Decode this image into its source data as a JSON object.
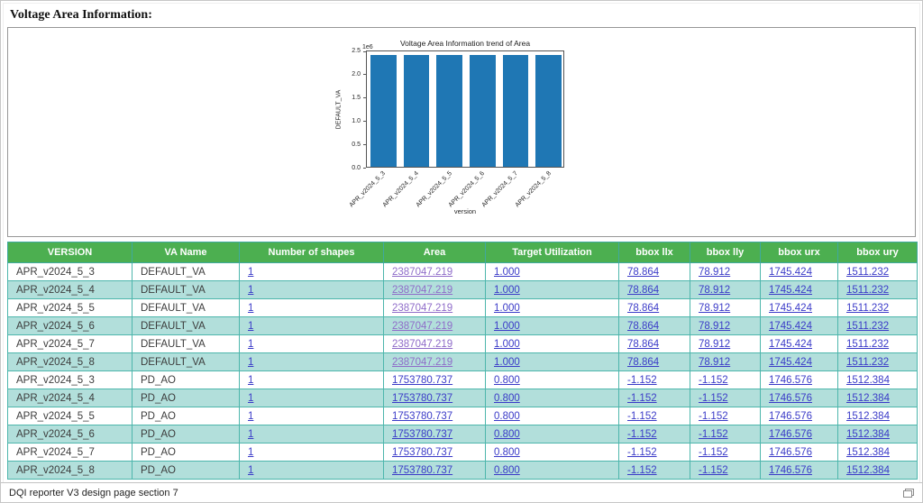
{
  "page": {
    "title": "Voltage Area Information:",
    "footer": "DQI reporter V3 design page section 7",
    "footer_icon": "overlapping-windows-icon"
  },
  "chart_data": {
    "type": "bar",
    "title": "Voltage Area Information trend of Area",
    "categories": [
      "APR_v2024_5_3",
      "APR_v2024_5_4",
      "APR_v2024_5_5",
      "APR_v2024_5_6",
      "APR_v2024_5_7",
      "APR_v2024_5_8"
    ],
    "values": [
      2387047.219,
      2387047.219,
      2387047.219,
      2387047.219,
      2387047.219,
      2387047.219
    ],
    "xlabel": "version",
    "ylabel": "DEFAULT_VA",
    "ylim": [
      0,
      2500000
    ],
    "ytick_labels": [
      "0.0",
      "0.5",
      "1.0",
      "1.5",
      "2.0",
      "2.5"
    ],
    "scale_label": "1e6",
    "grid": false,
    "legend": null,
    "bar_color": "#1f77b4"
  },
  "table": {
    "columns": [
      "VERSION",
      "VA Name",
      "Number of shapes",
      "Area",
      "Target Utilization",
      "bbox llx",
      "bbox lly",
      "bbox urx",
      "bbox ury"
    ],
    "keys": [
      "version",
      "va_name",
      "shapes",
      "area",
      "target",
      "llx",
      "lly",
      "urx",
      "ury"
    ],
    "link_keys": [
      "shapes",
      "area",
      "target",
      "llx",
      "lly",
      "urx",
      "ury"
    ],
    "rows": [
      {
        "version": "APR_v2024_5_3",
        "va_name": "DEFAULT_VA",
        "shapes": "1",
        "area": "2387047.219",
        "area_visited": true,
        "target": "1.000",
        "llx": "78.864",
        "lly": "78.912",
        "urx": "1745.424",
        "ury": "1511.232"
      },
      {
        "version": "APR_v2024_5_4",
        "va_name": "DEFAULT_VA",
        "shapes": "1",
        "area": "2387047.219",
        "area_visited": true,
        "target": "1.000",
        "llx": "78.864",
        "lly": "78.912",
        "urx": "1745.424",
        "ury": "1511.232"
      },
      {
        "version": "APR_v2024_5_5",
        "va_name": "DEFAULT_VA",
        "shapes": "1",
        "area": "2387047.219",
        "area_visited": true,
        "target": "1.000",
        "llx": "78.864",
        "lly": "78.912",
        "urx": "1745.424",
        "ury": "1511.232"
      },
      {
        "version": "APR_v2024_5_6",
        "va_name": "DEFAULT_VA",
        "shapes": "1",
        "area": "2387047.219",
        "area_visited": true,
        "target": "1.000",
        "llx": "78.864",
        "lly": "78.912",
        "urx": "1745.424",
        "ury": "1511.232"
      },
      {
        "version": "APR_v2024_5_7",
        "va_name": "DEFAULT_VA",
        "shapes": "1",
        "area": "2387047.219",
        "area_visited": true,
        "target": "1.000",
        "llx": "78.864",
        "lly": "78.912",
        "urx": "1745.424",
        "ury": "1511.232"
      },
      {
        "version": "APR_v2024_5_8",
        "va_name": "DEFAULT_VA",
        "shapes": "1",
        "area": "2387047.219",
        "area_visited": true,
        "target": "1.000",
        "llx": "78.864",
        "lly": "78.912",
        "urx": "1745.424",
        "ury": "1511.232"
      },
      {
        "version": "APR_v2024_5_3",
        "va_name": "PD_AO",
        "shapes": "1",
        "area": "1753780.737",
        "area_visited": false,
        "target": "0.800",
        "llx": "-1.152",
        "lly": "-1.152",
        "urx": "1746.576",
        "ury": "1512.384"
      },
      {
        "version": "APR_v2024_5_4",
        "va_name": "PD_AO",
        "shapes": "1",
        "area": "1753780.737",
        "area_visited": false,
        "target": "0.800",
        "llx": "-1.152",
        "lly": "-1.152",
        "urx": "1746.576",
        "ury": "1512.384"
      },
      {
        "version": "APR_v2024_5_5",
        "va_name": "PD_AO",
        "shapes": "1",
        "area": "1753780.737",
        "area_visited": false,
        "target": "0.800",
        "llx": "-1.152",
        "lly": "-1.152",
        "urx": "1746.576",
        "ury": "1512.384"
      },
      {
        "version": "APR_v2024_5_6",
        "va_name": "PD_AO",
        "shapes": "1",
        "area": "1753780.737",
        "area_visited": false,
        "target": "0.800",
        "llx": "-1.152",
        "lly": "-1.152",
        "urx": "1746.576",
        "ury": "1512.384"
      },
      {
        "version": "APR_v2024_5_7",
        "va_name": "PD_AO",
        "shapes": "1",
        "area": "1753780.737",
        "area_visited": false,
        "target": "0.800",
        "llx": "-1.152",
        "lly": "-1.152",
        "urx": "1746.576",
        "ury": "1512.384"
      },
      {
        "version": "APR_v2024_5_8",
        "va_name": "PD_AO",
        "shapes": "1",
        "area": "1753780.737",
        "area_visited": false,
        "target": "0.800",
        "llx": "-1.152",
        "lly": "-1.152",
        "urx": "1746.576",
        "ury": "1512.384"
      }
    ]
  },
  "colors": {
    "header_bg": "#4caf50",
    "header_text": "#ffffff",
    "row_alt_bg": "#b2dfdb",
    "cell_border": "#4db6ac",
    "link": "#3b3bc8",
    "link_visited": "#8f6cc9",
    "bar": "#1f77b4"
  }
}
